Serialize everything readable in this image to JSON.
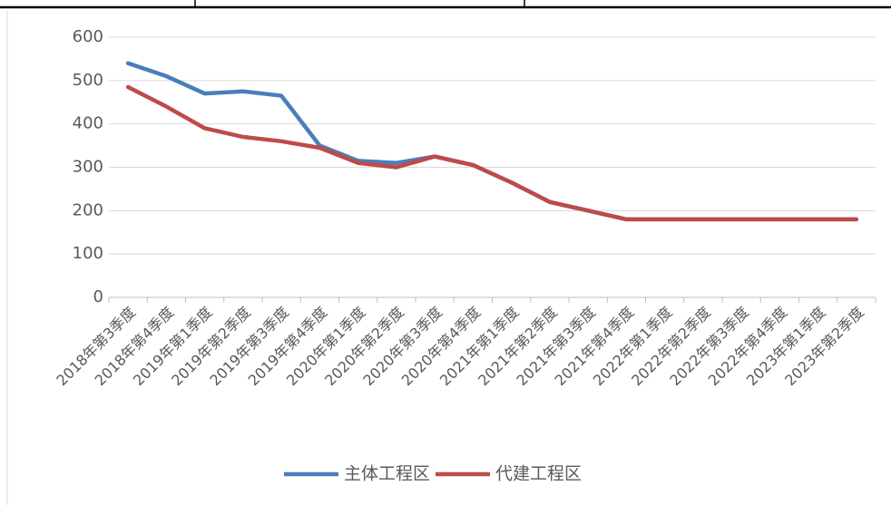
{
  "chart_data": {
    "type": "line",
    "categories": [
      "2018年第3季度",
      "2018年第4季度",
      "2019年第1季度",
      "2019年第2季度",
      "2019年第3季度",
      "2019年第4季度",
      "2020年第1季度",
      "2020年第2季度",
      "2020年第3季度",
      "2020年第4季度",
      "2021年第1季度",
      "2021年第2季度",
      "2021年第3季度",
      "2021年第4季度",
      "2022年第1季度",
      "2022年第2季度",
      "2022年第3季度",
      "2022年第4季度",
      "2023年第1季度",
      "2023年第2季度"
    ],
    "series": [
      {
        "name": "主体工程区",
        "color": "#4a7ebb",
        "values": [
          540,
          510,
          470,
          475,
          465,
          350,
          315,
          310,
          325,
          305,
          265,
          220,
          200,
          180,
          180,
          180,
          180,
          180,
          180,
          180
        ]
      },
      {
        "name": "代建工程区",
        "color": "#be4b48",
        "values": [
          485,
          440,
          390,
          370,
          360,
          345,
          310,
          300,
          325,
          305,
          265,
          220,
          200,
          180,
          180,
          180,
          180,
          180,
          180,
          180
        ]
      }
    ],
    "ylim": [
      0,
      600
    ],
    "yticks": [
      0,
      100,
      200,
      300,
      400,
      500,
      600
    ],
    "grid": true,
    "legend": "bottom"
  }
}
